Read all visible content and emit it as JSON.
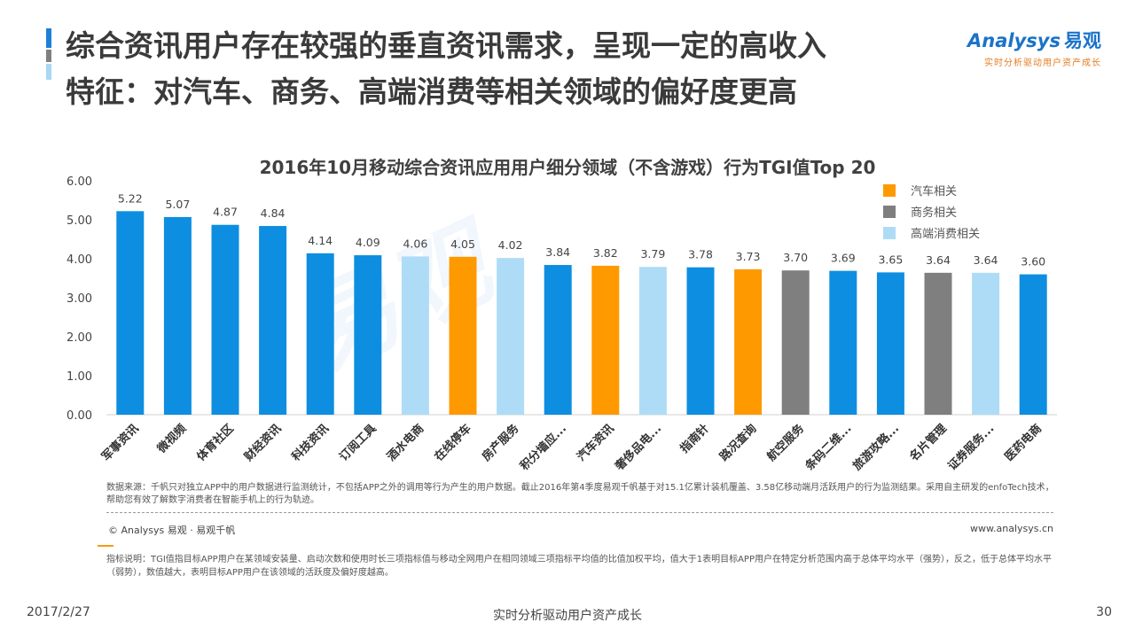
{
  "header": {
    "title_line1": "综合资讯用户存在较强的垂直资讯需求，呈现一定的高收入",
    "title_line2": "特征：对汽车、商务、高端消费等相关领域的偏好度更高",
    "bar_colors": [
      "#1e7fd8",
      "#7f7f7f",
      "#a9d7f5"
    ]
  },
  "logo": {
    "brand_en": "nalysys",
    "brand_prefix": "A",
    "brand_cn": "易观",
    "slogan": "实时分析驱动用户资产成长"
  },
  "watermark": "易观",
  "chart_data": {
    "type": "bar",
    "title": "2016年10月移动综合资讯应用用户细分领域（不含游戏）行为TGI值Top 20",
    "categories": [
      "军事资讯",
      "微视频",
      "体育社区",
      "财经资讯",
      "科技资讯",
      "订阅工具",
      "酒水电商",
      "在线停车",
      "房产服务",
      "积分墙应...",
      "汽车资讯",
      "奢侈品电...",
      "指南针",
      "路况查询",
      "航空服务",
      "条码二维...",
      "旅游攻略...",
      "名片管理",
      "证券服务...",
      "医药电商"
    ],
    "values": [
      5.22,
      5.07,
      4.87,
      4.84,
      4.14,
      4.09,
      4.06,
      4.05,
      4.02,
      3.84,
      3.82,
      3.79,
      3.78,
      3.73,
      3.7,
      3.69,
      3.65,
      3.64,
      3.64,
      3.6
    ],
    "value_labels": [
      "5.22",
      "5.07",
      "4.87",
      "4.84",
      "4.14",
      "4.09",
      "4.06",
      "4.05",
      "4.02",
      "3.84",
      "3.82",
      "3.79",
      "3.78",
      "3.73",
      "3.70",
      "3.69",
      "3.65",
      "3.64",
      "3.64",
      "3.60"
    ],
    "groups": [
      "default",
      "default",
      "default",
      "default",
      "default",
      "default",
      "luxury",
      "auto",
      "luxury",
      "default",
      "auto",
      "luxury",
      "default",
      "auto",
      "business",
      "default",
      "default",
      "business",
      "luxury",
      "default"
    ],
    "group_colors": {
      "default": "#0e8ee0",
      "auto": "#ff9900",
      "business": "#7f7f7f",
      "luxury": "#aedcf6"
    },
    "legend": [
      {
        "label": "汽车相关",
        "group": "auto"
      },
      {
        "label": "商务相关",
        "group": "business"
      },
      {
        "label": "高端消费相关",
        "group": "luxury"
      }
    ],
    "legend_position": "top-right",
    "ylim": [
      0,
      6
    ],
    "yticks": [
      "0.00",
      "1.00",
      "2.00",
      "3.00",
      "4.00",
      "5.00",
      "6.00"
    ],
    "xlabel": "",
    "ylabel": "",
    "grid": false
  },
  "source": {
    "text": "数据来源：千帆只对独立APP中的用户数据进行监测统计，不包括APP之外的调用等行为产生的用户数据。截止2016年第4季度易观千帆基于对15.1亿累计装机覆盖、3.58亿移动端月活跃用户的行为监测结果。采用自主研发的enfoTech技术，帮助您有效了解数字消费者在智能手机上的行为轨迹。",
    "copyright": "© Analysys 易观 · 易观千帆",
    "website": "www.analysys.cn"
  },
  "note": "指标说明：TGI值指目标APP用户在某领域安装量、启动次数和使用时长三项指标值与移动全网用户在相同领域三项指标平均值的比值加权平均，值大于1表明目标APP用户在特定分析范围内高于总体平均水平（强势），反之，低于总体平均水平（弱势），数值越大，表明目标APP用户在该领域的活跃度及偏好度越高。",
  "footer": {
    "date": "2017/2/27",
    "slogan": "实时分析驱动用户资产成长",
    "page": "30"
  }
}
